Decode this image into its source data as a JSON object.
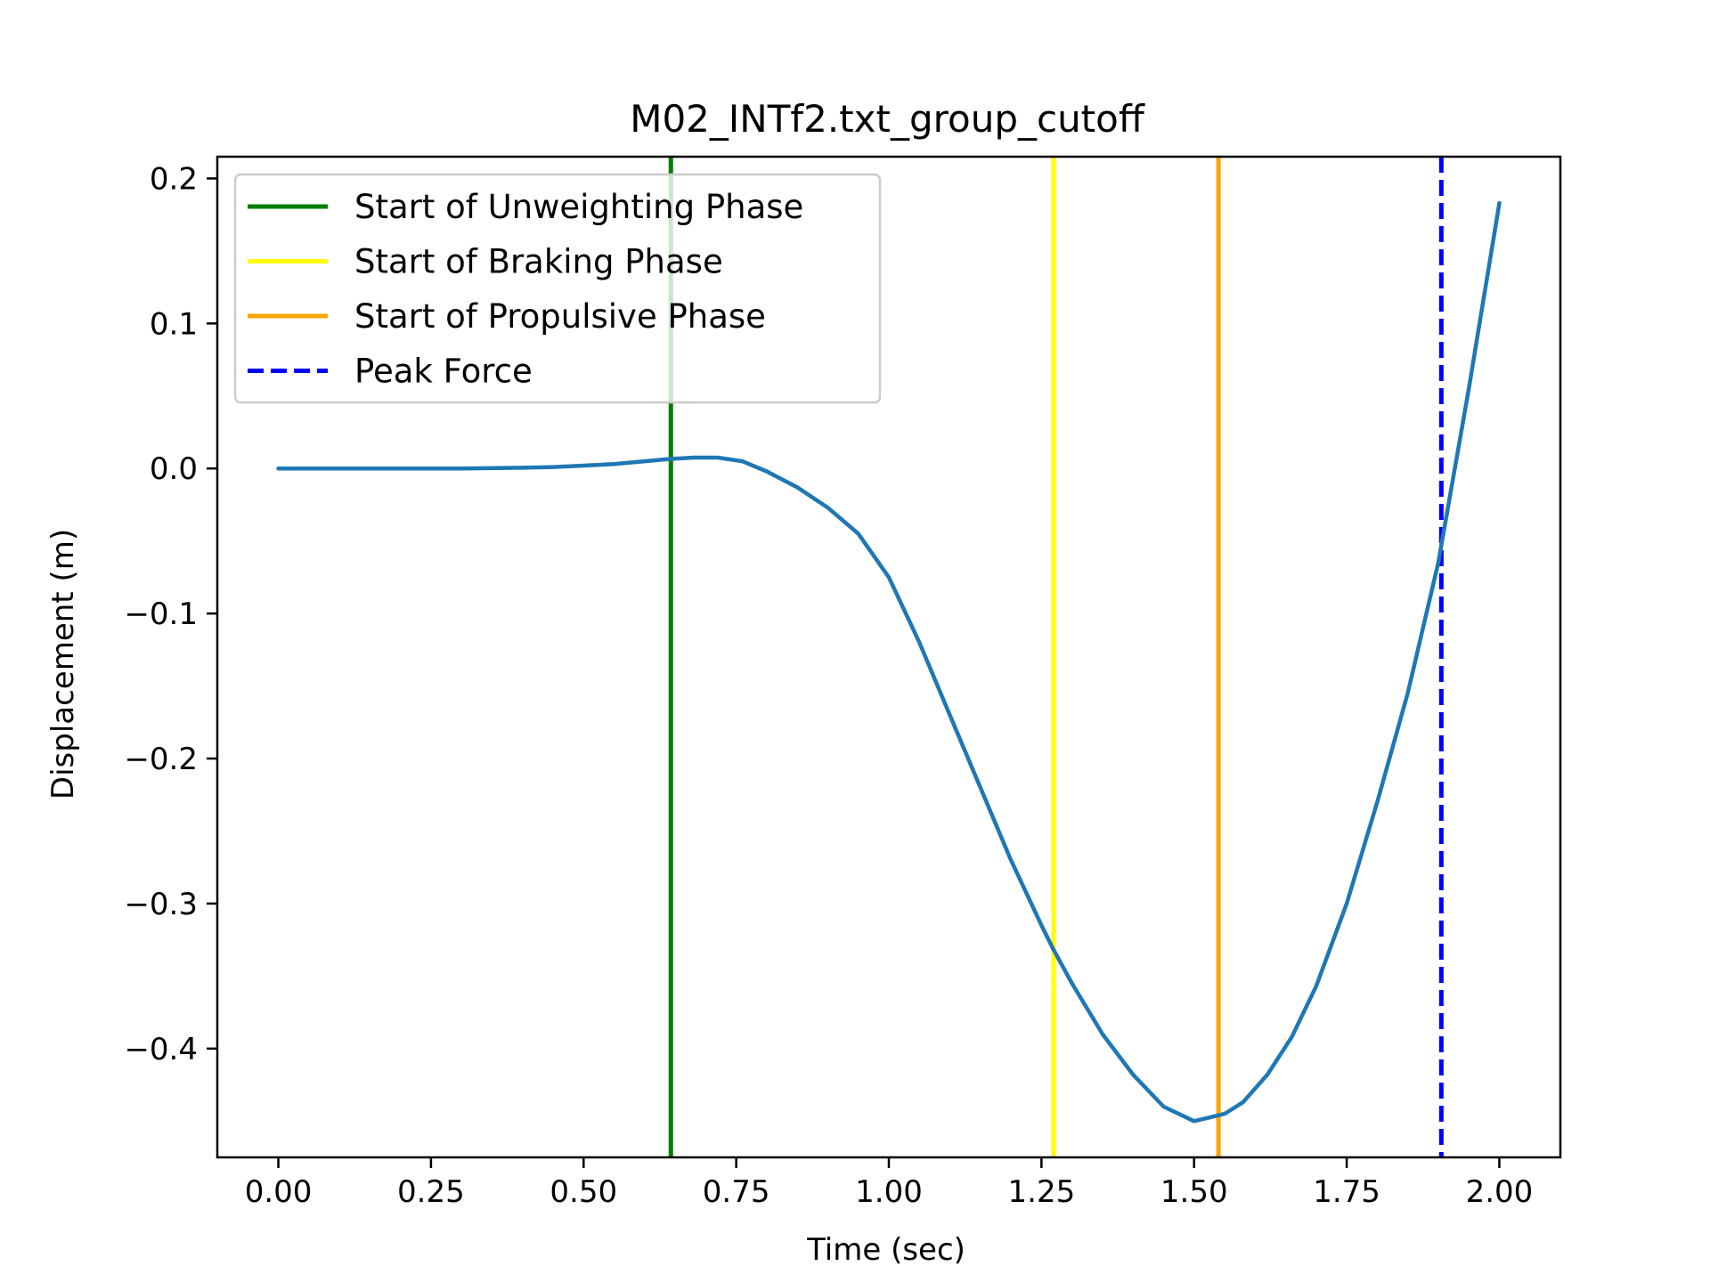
{
  "chart_data": {
    "type": "line",
    "title": "M02_INTf2.txt_group_cutoff",
    "xlabel": "Time (sec)",
    "ylabel": "Displacement (m)",
    "xlim": [
      -0.1,
      2.1
    ],
    "ylim": [
      -0.475,
      0.215
    ],
    "xticks": [
      0.0,
      0.25,
      0.5,
      0.75,
      1.0,
      1.25,
      1.5,
      1.75,
      2.0
    ],
    "xtick_labels": [
      "0.00",
      "0.25",
      "0.50",
      "0.75",
      "1.00",
      "1.25",
      "1.50",
      "1.75",
      "2.00"
    ],
    "yticks": [
      0.2,
      0.1,
      0.0,
      -0.1,
      -0.2,
      -0.3,
      -0.4
    ],
    "ytick_labels": [
      "0.2",
      "0.1",
      "0.0",
      "−0.1",
      "−0.2",
      "−0.3",
      "−0.4"
    ],
    "grid": false,
    "legend_position": "top-left",
    "series": [
      {
        "color": "#1f77b4",
        "x": [
          0.0,
          0.1,
          0.2,
          0.3,
          0.4,
          0.45,
          0.5,
          0.55,
          0.6,
          0.64,
          0.68,
          0.72,
          0.76,
          0.8,
          0.85,
          0.9,
          0.95,
          1.0,
          1.05,
          1.1,
          1.15,
          1.2,
          1.25,
          1.27,
          1.3,
          1.35,
          1.4,
          1.45,
          1.5,
          1.53,
          1.55,
          1.58,
          1.62,
          1.66,
          1.7,
          1.75,
          1.8,
          1.85,
          1.9,
          1.95,
          2.0
        ],
        "y": [
          0.0,
          0.0,
          0.0,
          0.0,
          0.0005,
          0.001,
          0.002,
          0.003,
          0.005,
          0.0065,
          0.0075,
          0.0075,
          0.005,
          -0.002,
          -0.013,
          -0.027,
          -0.045,
          -0.075,
          -0.12,
          -0.17,
          -0.22,
          -0.27,
          -0.315,
          -0.332,
          -0.355,
          -0.39,
          -0.418,
          -0.44,
          -0.45,
          -0.447,
          -0.445,
          -0.437,
          -0.418,
          -0.392,
          -0.357,
          -0.3,
          -0.23,
          -0.155,
          -0.065,
          0.055,
          0.183
        ]
      }
    ],
    "vlines": [
      {
        "name": "Start of Unweighting Phase",
        "x": 0.643,
        "color": "#008000",
        "style": "solid"
      },
      {
        "name": "Start of Braking Phase",
        "x": 1.27,
        "color": "#ffff00",
        "style": "solid"
      },
      {
        "name": "Start of Propulsive Phase",
        "x": 1.54,
        "color": "#ffa500",
        "style": "solid"
      },
      {
        "name": "Peak Force",
        "x": 1.905,
        "color": "#0000ff",
        "style": "dashed"
      }
    ]
  }
}
